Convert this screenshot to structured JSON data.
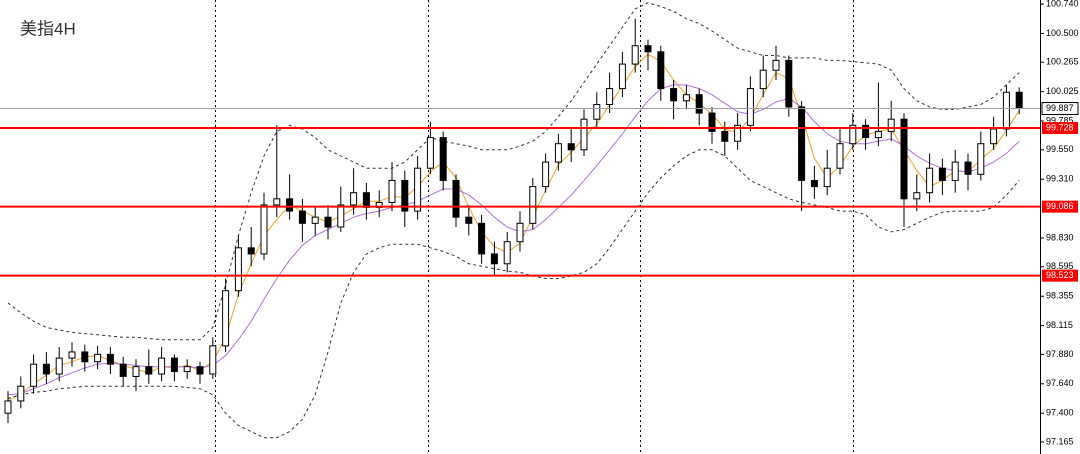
{
  "chart_data": {
    "type": "candlestick",
    "title": "美指4H",
    "ylim": [
      97.067,
      100.773
    ],
    "yticks": [
      {
        "value": 100.74,
        "label": "100.740"
      },
      {
        "value": 100.5,
        "label": "100.500"
      },
      100.265,
      100.025,
      99.785,
      {
        "value": 99.55,
        "label": "99.550"
      },
      {
        "value": 99.31,
        "label": "99.310"
      },
      {
        "value": 98.83,
        "label": "98.830"
      },
      98.595,
      98.355,
      98.115,
      {
        "value": 97.88,
        "label": "97.880"
      },
      {
        "value": 97.64,
        "label": "97.640"
      },
      {
        "value": 97.4,
        "label": "97.400"
      },
      97.165
    ],
    "open": [
      97.4,
      97.5,
      97.62,
      97.8,
      97.72,
      97.85,
      97.9,
      97.82,
      97.88,
      97.8,
      97.7,
      97.78,
      97.72,
      97.85,
      97.74,
      97.78,
      97.72,
      97.95,
      98.4,
      98.75,
      98.7,
      99.1,
      99.15,
      99.05,
      98.95,
      99.0,
      98.92,
      99.1,
      99.2,
      99.08,
      99.12,
      99.3,
      99.05,
      99.4,
      99.65,
      99.3,
      99.0,
      98.95,
      98.7,
      98.62,
      98.8,
      98.95,
      99.25,
      99.45,
      99.6,
      99.55,
      99.8,
      99.92,
      100.05,
      100.25,
      100.4,
      100.35,
      100.05,
      99.95,
      100.0,
      99.85,
      99.7,
      99.62,
      99.75,
      100.05,
      100.2,
      100.28,
      99.9,
      99.3,
      99.25,
      99.4,
      99.6,
      99.75,
      99.65,
      99.7,
      99.8,
      99.15,
      99.2,
      99.4,
      99.3,
      99.45,
      99.35,
      99.6,
      99.72,
      100.02
    ],
    "high": [
      97.58,
      97.7,
      97.88,
      97.9,
      97.94,
      97.98,
      97.96,
      97.95,
      97.94,
      97.86,
      97.84,
      97.92,
      97.94,
      97.88,
      97.84,
      97.82,
      98.02,
      98.5,
      98.85,
      98.92,
      99.2,
      99.75,
      99.35,
      99.15,
      99.08,
      99.1,
      99.25,
      99.4,
      99.28,
      99.22,
      99.45,
      99.38,
      99.5,
      99.78,
      99.7,
      99.35,
      99.1,
      99.02,
      98.8,
      98.88,
      99.05,
      99.32,
      99.52,
      99.68,
      99.72,
      99.88,
      100.02,
      100.18,
      100.35,
      100.62,
      100.45,
      100.4,
      100.12,
      100.08,
      100.05,
      99.9,
      99.78,
      99.85,
      100.15,
      100.32,
      100.4,
      100.32,
      99.95,
      99.42,
      99.55,
      99.72,
      99.85,
      99.8,
      100.1,
      99.95,
      99.85,
      99.35,
      99.52,
      99.48,
      99.55,
      99.52,
      99.7,
      99.82,
      100.08,
      100.06
    ],
    "low": [
      97.32,
      97.44,
      97.56,
      97.64,
      97.66,
      97.78,
      97.74,
      97.76,
      97.72,
      97.62,
      97.58,
      97.64,
      97.66,
      97.66,
      97.68,
      97.64,
      97.68,
      97.9,
      98.35,
      98.6,
      98.65,
      99.0,
      98.98,
      98.8,
      98.85,
      98.82,
      98.88,
      99.02,
      98.98,
      99.0,
      99.05,
      98.92,
      98.98,
      99.35,
      99.22,
      98.92,
      98.85,
      98.62,
      98.52,
      98.55,
      98.72,
      98.9,
      99.2,
      99.38,
      99.45,
      99.5,
      99.72,
      99.85,
      99.98,
      100.18,
      100.2,
      99.95,
      99.8,
      99.88,
      99.75,
      99.6,
      99.5,
      99.55,
      99.7,
      99.98,
      100.12,
      99.82,
      99.05,
      99.15,
      99.18,
      99.35,
      99.55,
      99.55,
      99.58,
      99.62,
      98.92,
      99.05,
      99.12,
      99.18,
      99.2,
      99.22,
      99.3,
      99.55,
      99.66,
      99.84
    ],
    "close": [
      97.5,
      97.62,
      97.8,
      97.72,
      97.85,
      97.9,
      97.82,
      97.88,
      97.8,
      97.7,
      97.78,
      97.72,
      97.85,
      97.74,
      97.78,
      97.72,
      97.95,
      98.4,
      98.75,
      98.7,
      99.1,
      99.15,
      99.05,
      98.95,
      99.0,
      98.92,
      99.1,
      99.2,
      99.08,
      99.12,
      99.3,
      99.05,
      99.4,
      99.65,
      99.3,
      99.0,
      98.95,
      98.7,
      98.62,
      98.8,
      98.95,
      99.25,
      99.45,
      99.6,
      99.55,
      99.8,
      99.92,
      100.05,
      100.25,
      100.4,
      100.35,
      100.05,
      99.95,
      100.0,
      99.85,
      99.7,
      99.62,
      99.75,
      100.05,
      100.2,
      100.28,
      99.9,
      99.3,
      99.25,
      99.4,
      99.6,
      99.75,
      99.65,
      99.7,
      99.8,
      99.15,
      99.2,
      99.4,
      99.3,
      99.45,
      99.35,
      99.6,
      99.72,
      100.02,
      99.89
    ],
    "lines": [
      {
        "color": "#f0a020",
        "dash": false,
        "values": [
          97.5,
          97.56,
          97.64,
          97.71,
          97.79,
          97.82,
          97.86,
          97.87,
          97.83,
          97.79,
          97.76,
          97.73,
          97.78,
          97.77,
          97.79,
          97.75,
          97.82,
          98.02,
          98.37,
          98.62,
          98.85,
          98.98,
          99.1,
          99.05,
          99.0,
          98.96,
          99.01,
          99.07,
          99.13,
          99.13,
          99.17,
          99.16,
          99.25,
          99.37,
          99.45,
          99.32,
          99.08,
          98.88,
          98.76,
          98.71,
          98.79,
          99.0,
          99.22,
          99.43,
          99.53,
          99.65,
          99.76,
          99.92,
          100.07,
          100.23,
          100.33,
          100.27,
          100.12,
          100.0,
          99.93,
          99.84,
          99.72,
          99.69,
          99.81,
          100.0,
          100.18,
          100.13,
          99.83,
          99.48,
          99.32,
          99.42,
          99.58,
          99.67,
          99.7,
          99.72,
          99.55,
          99.38,
          99.25,
          99.3,
          99.38,
          99.37,
          99.47,
          99.56,
          99.71,
          99.87
        ]
      },
      {
        "color": "#b070e0",
        "dash": false,
        "values": [
          97.55,
          97.56,
          97.6,
          97.64,
          97.69,
          97.73,
          97.77,
          97.8,
          97.81,
          97.8,
          97.79,
          97.78,
          97.78,
          97.78,
          97.78,
          97.77,
          97.79,
          97.87,
          98.0,
          98.15,
          98.33,
          98.5,
          98.65,
          98.77,
          98.85,
          98.9,
          98.95,
          99.0,
          99.03,
          99.05,
          99.08,
          99.1,
          99.13,
          99.18,
          99.23,
          99.23,
          99.18,
          99.1,
          99.0,
          98.92,
          98.88,
          98.9,
          98.98,
          99.08,
          99.18,
          99.3,
          99.42,
          99.55,
          99.68,
          99.82,
          99.95,
          100.05,
          100.08,
          100.08,
          100.05,
          100.0,
          99.93,
          99.86,
          99.84,
          99.88,
          99.94,
          99.97,
          99.9,
          99.78,
          99.68,
          99.62,
          99.6,
          99.6,
          99.62,
          99.64,
          99.58,
          99.5,
          99.44,
          99.4,
          99.38,
          99.37,
          99.4,
          99.45,
          99.52,
          99.62
        ]
      },
      {
        "color": "#333333",
        "dash": true,
        "values": [
          98.3,
          98.22,
          98.15,
          98.1,
          98.08,
          98.06,
          98.05,
          98.04,
          98.03,
          98.02,
          98.02,
          98.01,
          98.0,
          98.0,
          98.0,
          98.0,
          98.1,
          98.45,
          98.85,
          99.2,
          99.5,
          99.7,
          99.75,
          99.72,
          99.65,
          99.55,
          99.5,
          99.45,
          99.4,
          99.4,
          99.4,
          99.45,
          99.55,
          99.65,
          99.62,
          99.6,
          99.58,
          99.55,
          99.55,
          99.55,
          99.58,
          99.62,
          99.7,
          99.82,
          99.95,
          100.1,
          100.25,
          100.4,
          100.55,
          100.7,
          100.75,
          100.72,
          100.68,
          100.62,
          100.58,
          100.52,
          100.45,
          100.38,
          100.35,
          100.32,
          100.32,
          100.3,
          100.3,
          100.3,
          100.28,
          100.28,
          100.27,
          100.26,
          100.25,
          100.2,
          100.05,
          99.95,
          99.9,
          99.88,
          99.88,
          99.9,
          99.92,
          99.98,
          100.08,
          100.18
        ]
      },
      {
        "color": "#333333",
        "dash": true,
        "values": [
          97.52,
          97.55,
          97.57,
          97.58,
          97.6,
          97.61,
          97.62,
          97.62,
          97.62,
          97.62,
          97.62,
          97.62,
          97.62,
          97.62,
          97.61,
          97.6,
          97.55,
          97.4,
          97.3,
          97.25,
          97.2,
          97.2,
          97.25,
          97.35,
          97.55,
          97.9,
          98.3,
          98.55,
          98.7,
          98.75,
          98.78,
          98.78,
          98.78,
          98.75,
          98.72,
          98.68,
          98.62,
          98.6,
          98.58,
          98.56,
          98.55,
          98.52,
          98.5,
          98.5,
          98.52,
          98.55,
          98.62,
          98.75,
          98.9,
          99.05,
          99.2,
          99.32,
          99.42,
          99.5,
          99.55,
          99.55,
          99.5,
          99.4,
          99.3,
          99.25,
          99.2,
          99.15,
          99.12,
          99.1,
          99.08,
          99.05,
          99.05,
          99.02,
          98.92,
          98.88,
          98.9,
          98.95,
          99.0,
          99.04,
          99.05,
          99.05,
          99.05,
          99.08,
          99.18,
          99.3
        ]
      }
    ],
    "levels": [
      {
        "value": 99.728,
        "color": "#ff0000"
      },
      {
        "value": 99.086,
        "color": "#ff0000"
      },
      {
        "value": 98.523,
        "color": "#ff0000"
      }
    ],
    "current_price": {
      "value": 99.887,
      "color": "#a0a0a0"
    }
  }
}
